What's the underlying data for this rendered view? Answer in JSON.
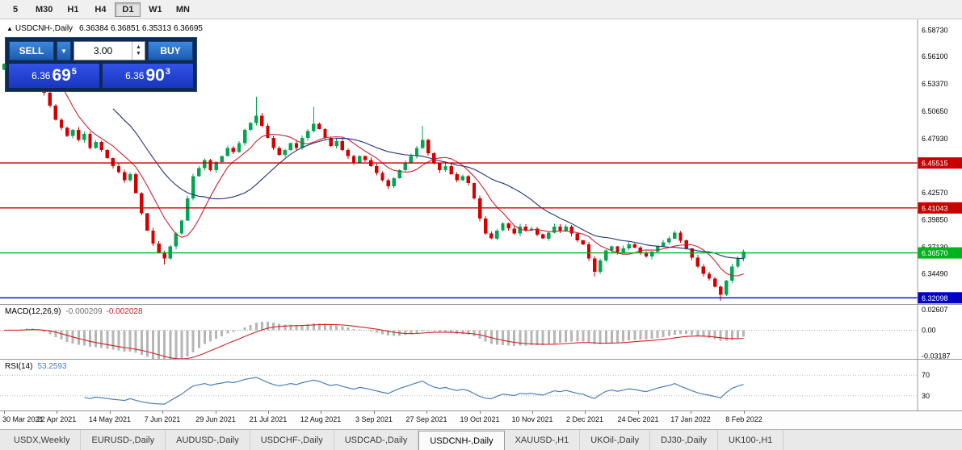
{
  "toolbar": {
    "timeframes": [
      "5",
      "M30",
      "H1",
      "H4",
      "D1",
      "W1",
      "MN"
    ],
    "active": "D1"
  },
  "symbol_info": {
    "arrow": "▲",
    "name": "USDCNH-,Daily",
    "ohlc": "6.36384 6.36851 6.35313 6.36695"
  },
  "trade_panel": {
    "sell_label": "SELL",
    "buy_label": "BUY",
    "volume": "3.00",
    "dropdown_icon": "▼",
    "spin_up_icon": "▲",
    "spin_down_icon": "▼",
    "sell_price": {
      "prefix": "6.36",
      "big": "69",
      "sup": "5"
    },
    "buy_price": {
      "prefix": "6.36",
      "big": "90",
      "sup": "3"
    }
  },
  "tabs": {
    "items": [
      "USDX,Weekly",
      "EURUSD-,Daily",
      "AUDUSD-,Daily",
      "USDCHF-,Daily",
      "USDCAD-,Daily",
      "USDCNH-,Daily",
      "XAUUSD-,H1",
      "UKOil-,Daily",
      "DJ30-,Daily",
      "UK100-,H1"
    ],
    "active": "USDCNH-,Daily"
  },
  "chart_data": {
    "type": "candlestick",
    "title": "USDCNH-,Daily",
    "quote": {
      "open": 6.36384,
      "high": 6.36851,
      "low": 6.35313,
      "close": 6.36695
    },
    "x_labels": [
      "30 Mar 2021",
      "22 Apr 2021",
      "14 May 2021",
      "7 Jun 2021",
      "29 Jun 2021",
      "21 Jul 2021",
      "12 Aug 2021",
      "3 Sep 2021",
      "27 Sep 2021",
      "19 Oct 2021",
      "10 Nov 2021",
      "2 Dec 2021",
      "24 Dec 2021",
      "17 Jan 2022",
      "8 Feb 2022"
    ],
    "y_domain": [
      6.314,
      6.598
    ],
    "y_ticks": [
      "6.58730",
      "6.56100",
      "6.53370",
      "6.50650",
      "6.47930",
      "6.42570",
      "6.39850",
      "6.37130",
      "6.34490"
    ],
    "levels": [
      {
        "value": 6.45515,
        "label": "6.45515",
        "color": "#c80000"
      },
      {
        "value": 6.41043,
        "label": "6.41043",
        "color": "#c80000"
      },
      {
        "value": 6.3657,
        "label": "6.36570",
        "color": "#00b41e"
      },
      {
        "value": 6.32098,
        "label": "6.32098",
        "color": "#0000c8"
      }
    ],
    "first_open": 6.548,
    "closes": [
      6.554,
      6.56,
      6.549,
      6.565,
      6.572,
      6.556,
      6.54,
      6.525,
      6.512,
      6.498,
      6.49,
      6.482,
      6.488,
      6.478,
      6.484,
      6.47,
      6.476,
      6.468,
      6.46,
      6.452,
      6.446,
      6.438,
      6.444,
      6.425,
      6.405,
      6.388,
      6.375,
      6.366,
      6.36,
      6.372,
      6.385,
      6.398,
      6.42,
      6.442,
      6.45,
      6.458,
      6.448,
      6.456,
      6.462,
      6.47,
      6.466,
      6.475,
      6.488,
      6.495,
      6.502,
      6.492,
      6.48,
      6.47,
      6.463,
      6.468,
      6.475,
      6.47,
      6.48,
      6.487,
      6.494,
      6.489,
      6.48,
      6.472,
      6.477,
      6.468,
      6.462,
      6.455,
      6.462,
      6.458,
      6.452,
      6.445,
      6.438,
      6.432,
      6.44,
      6.448,
      6.455,
      6.462,
      6.47,
      6.478,
      6.465,
      6.455,
      6.448,
      6.452,
      6.444,
      6.438,
      6.442,
      6.435,
      6.42,
      6.4,
      6.385,
      6.38,
      6.388,
      6.395,
      6.39,
      6.385,
      6.392,
      6.388,
      6.39,
      6.384,
      6.38,
      6.386,
      6.392,
      6.388,
      6.392,
      6.385,
      6.378,
      6.374,
      6.36,
      6.347,
      6.358,
      6.368,
      6.372,
      6.366,
      6.37,
      6.374,
      6.371,
      6.366,
      6.362,
      6.367,
      6.372,
      6.376,
      6.38,
      6.386,
      6.378,
      6.37,
      6.361,
      6.352,
      6.345,
      6.34,
      6.332,
      6.324,
      6.338,
      6.352,
      6.36,
      6.367
    ],
    "wick_base": 0.0055,
    "wick_overrides": {
      "4": {
        "high": 6.578
      },
      "28": {
        "low": 6.354
      },
      "44": {
        "high": 6.521
      },
      "54": {
        "high": 6.511
      },
      "73": {
        "high": 6.492
      },
      "103": {
        "low": 6.342
      },
      "125": {
        "low": 6.318
      }
    },
    "data_fraction": 0.806,
    "candle_colors": {
      "up": "#00a651",
      "down": "#d40000"
    },
    "ma": [
      {
        "period": 8,
        "color": "#cc2233"
      },
      {
        "period": 20,
        "color": "#20307c"
      }
    ],
    "macd": {
      "label": "MACD(12,26,9)",
      "value_main": "-0.000209",
      "value_signal": "-0.002028",
      "ticks": [
        {
          "label": "0.02607",
          "value": 0.02607
        },
        {
          "label": "0.00",
          "value": 0
        },
        {
          "label": "-0.03187",
          "value": -0.03187
        }
      ],
      "domain": [
        -0.0365,
        0.0315
      ],
      "histogram_color": "#b6b6b6",
      "signal_color": "#cc2222"
    },
    "rsi": {
      "label": "RSI(14)",
      "value": "53.2593",
      "levels": [
        {
          "label": "70",
          "value": 70
        },
        {
          "label": "30",
          "value": 30
        }
      ],
      "domain": [
        0,
        100
      ],
      "line_color": "#4a7ebb"
    }
  }
}
